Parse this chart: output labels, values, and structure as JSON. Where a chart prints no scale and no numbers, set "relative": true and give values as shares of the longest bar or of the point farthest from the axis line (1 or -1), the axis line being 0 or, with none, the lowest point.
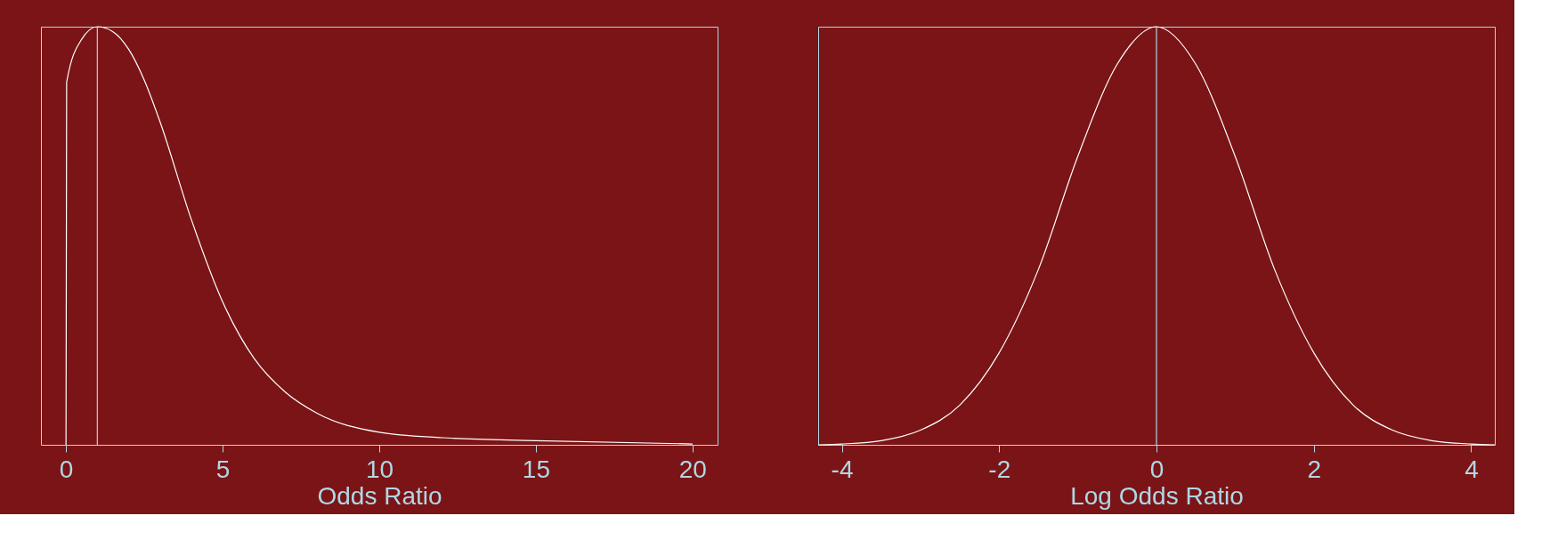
{
  "chart_data": [
    {
      "type": "line",
      "xlabel": "Odds Ratio",
      "relative": true,
      "tick_labels": "x",
      "x": [
        0,
        0.02,
        0.5,
        1,
        1.5,
        2,
        2.5,
        3,
        4,
        5,
        6,
        7,
        8,
        10,
        12,
        15,
        20
      ],
      "xlim": [
        -0.8,
        20.8
      ],
      "xticks": [
        0,
        5,
        10,
        15,
        20
      ],
      "series": [
        {
          "color": "#ffffff",
          "values": [
            0,
            0.867,
            0.97,
            1,
            0.988,
            0.946,
            0.872,
            0.773,
            0.539,
            0.342,
            0.207,
            0.126,
            0.076,
            0.03,
            0.017,
            0.01,
            0.002
          ]
        }
      ],
      "ref_lines": [
        {
          "axis": "x",
          "value": 1,
          "color": "#add8e6"
        }
      ]
    },
    {
      "type": "line",
      "xlabel": "Log Odds Ratio",
      "relative": true,
      "tick_labels": "x",
      "x": [
        -4.3,
        -4,
        -3.5,
        -3,
        -2.5,
        -2,
        -1.5,
        -1,
        -0.5,
        0,
        0.5,
        1,
        1.5,
        2,
        2.5,
        3,
        3.5,
        4,
        4.3
      ],
      "xlim": [
        -4.3,
        4.3
      ],
      "xticks": [
        -4,
        -2,
        0,
        2,
        4
      ],
      "series": [
        {
          "color": "#ffffff",
          "values": [
            0,
            0.002,
            0.01,
            0.035,
            0.095,
            0.22,
            0.42,
            0.69,
            0.91,
            1,
            0.91,
            0.69,
            0.42,
            0.22,
            0.095,
            0.035,
            0.01,
            0.002,
            0
          ]
        }
      ],
      "ref_lines": [
        {
          "axis": "x",
          "value": 0,
          "color": "#add8e6"
        }
      ]
    }
  ]
}
